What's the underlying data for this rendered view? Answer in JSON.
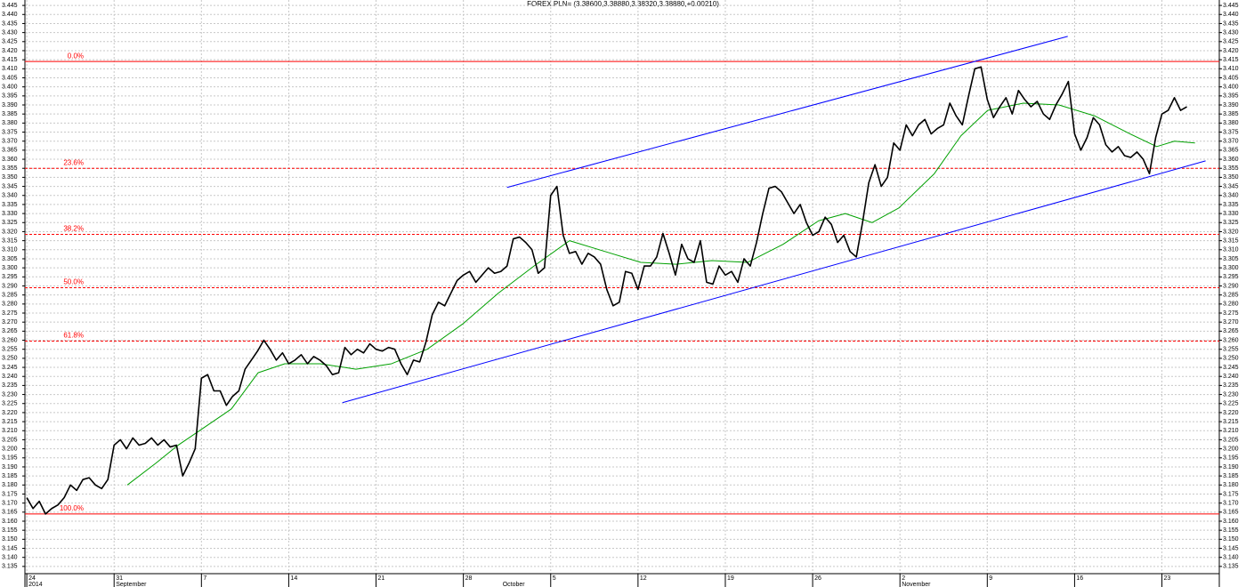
{
  "chart_data": {
    "type": "line",
    "title": "FOREX PLN= (3.38600,3.38880,3.38320,3.38880,+0.00210)",
    "x": [
      0,
      0.5,
      1,
      1.5,
      2,
      2.5,
      3,
      3.5,
      4,
      4.5,
      5,
      5.5,
      6,
      6.5,
      7,
      7.5,
      8,
      8.5,
      9,
      9.5,
      10,
      10.5,
      11,
      11.5,
      12,
      12.5,
      13,
      13.5,
      14,
      14.5,
      15,
      15.5,
      16,
      16.5,
      17,
      17.5,
      18,
      18.5,
      19,
      19.5,
      20,
      20.5,
      21,
      21.5,
      22,
      22.5,
      23,
      23.5,
      24,
      24.5,
      25,
      25.5,
      26,
      26.5,
      27,
      27.5,
      28,
      28.5,
      29,
      29.5,
      30,
      30.5,
      31,
      31.5,
      32,
      32.5,
      33,
      33.5,
      34,
      34.5,
      35,
      35.5,
      36,
      36.5,
      37,
      37.5,
      38,
      38.5,
      39,
      39.5,
      40,
      40.5,
      41,
      41.5,
      42,
      42.5,
      43,
      43.5,
      44,
      44.5,
      45,
      45.5,
      46,
      46.5,
      47,
      47.5,
      48,
      48.5,
      49,
      49.5,
      50,
      50.5,
      51,
      51.5,
      52,
      52.5,
      53,
      53.5,
      54,
      54.5,
      55,
      55.5,
      56,
      56.5,
      57,
      57.5,
      58,
      58.5,
      59,
      59.5,
      60,
      60.5,
      61,
      61.5,
      62,
      62.5,
      63,
      63.5,
      64,
      64.5,
      65,
      65.5,
      66,
      66.5,
      67,
      67.5,
      68,
      68.5,
      69,
      69.5,
      70,
      70.5,
      71,
      71.5,
      72,
      72.5,
      73,
      73.5,
      74,
      74.5,
      75,
      75.5,
      76,
      76.5,
      77,
      77.5,
      78,
      78.5,
      79,
      79.5,
      80,
      80.5,
      81,
      81.5,
      82,
      82.5,
      83,
      83.5,
      84,
      84.5,
      85,
      85.5,
      86,
      86.5,
      87,
      87.5,
      88,
      88.5,
      89,
      89.5,
      90,
      90.5,
      91,
      91.5,
      92,
      92.5,
      93
    ],
    "series": [
      {
        "color": "#000000",
        "values": [
          3.173,
          3.167,
          3.171,
          3.164,
          3.167,
          3.169,
          3.173,
          3.18,
          3.177,
          3.183,
          3.184,
          3.18,
          3.178,
          3.183,
          3.202,
          3.205,
          3.2,
          3.206,
          3.202,
          3.203,
          3.206,
          3.202,
          3.205,
          3.201,
          3.202,
          3.185,
          3.192,
          3.2,
          3.239,
          3.241,
          3.232,
          3.232,
          3.224,
          3.229,
          3.232,
          3.244,
          3.249,
          3.254,
          3.26,
          3.255,
          3.249,
          3.253,
          3.247,
          3.249,
          3.252,
          3.247,
          3.251,
          3.249,
          3.246,
          3.241,
          3.242,
          3.256,
          3.252,
          3.255,
          3.253,
          3.258,
          3.255,
          3.254,
          3.256,
          3.255,
          3.247,
          3.241,
          3.249,
          3.248,
          3.259,
          3.274,
          3.281,
          3.279,
          3.286,
          3.293,
          3.296,
          3.298,
          3.292,
          3.296,
          3.3,
          3.297,
          3.298,
          3.301,
          3.316,
          3.317,
          3.314,
          3.31,
          3.297,
          3.3,
          3.34,
          3.345,
          3.318,
          3.308,
          3.309,
          3.302,
          3.308,
          3.306,
          3.302,
          3.288,
          3.279,
          3.281,
          3.298,
          3.297,
          3.288,
          3.301,
          3.301,
          3.306,
          3.319,
          3.308,
          3.296,
          3.313,
          3.305,
          3.303,
          3.315,
          3.292,
          3.291,
          3.301,
          3.296,
          3.298,
          3.292,
          3.305,
          3.301,
          3.314,
          3.33,
          3.344,
          3.345,
          3.342,
          3.336,
          3.33,
          3.335,
          3.325,
          3.318,
          3.32,
          3.328,
          3.324,
          3.314,
          3.318,
          3.309,
          3.306,
          3.325,
          3.347,
          3.357,
          3.345,
          3.35,
          3.369,
          3.365,
          3.379,
          3.373,
          3.379,
          3.382,
          3.374,
          3.377,
          3.379,
          3.391,
          3.384,
          3.379,
          3.395,
          3.41,
          3.411,
          3.393,
          3.383,
          3.389,
          3.394,
          3.385,
          3.398,
          3.393,
          3.389,
          3.392,
          3.385,
          3.382,
          3.39,
          3.396,
          3.403,
          3.374,
          3.365,
          3.372,
          3.383,
          3.379,
          3.368,
          3.364,
          3.367,
          3.362,
          3.361,
          3.364,
          3.36,
          3.352,
          3.372,
          3.385,
          3.387,
          3.394,
          3.387,
          3.389
        ]
      },
      {
        "color": "#00a000",
        "x": [
          8.06,
          10.34,
          12.13,
          14.27,
          16.4,
          18.54,
          20.68,
          23.54,
          26.39,
          29.24,
          32.1,
          34.95,
          37.8,
          40.66,
          43.51,
          46.36,
          49.22,
          52.07,
          54.92,
          57.77,
          60.63,
          63.48,
          65.62,
          67.76,
          69.9,
          72.75,
          74.89,
          77.03,
          79.89,
          82.74,
          85.59,
          88.45,
          90.58,
          92,
          93.65
        ],
        "values": [
          3.18,
          3.192,
          3.202,
          3.212,
          3.222,
          3.242,
          3.247,
          3.247,
          3.244,
          3.247,
          3.255,
          3.269,
          3.286,
          3.301,
          3.315,
          3.309,
          3.303,
          3.302,
          3.304,
          3.303,
          3.313,
          3.326,
          3.33,
          3.325,
          3.333,
          3.352,
          3.373,
          3.387,
          3.391,
          3.39,
          3.384,
          3.374,
          3.367,
          3.37,
          3.369
        ]
      }
    ],
    "xlim": [
      -0.15,
      95.6
    ],
    "xticks": [
      {
        "value": 0,
        "label": "24"
      },
      {
        "value": 7,
        "label": "31"
      },
      {
        "value": 14,
        "label": "7"
      },
      {
        "value": 21,
        "label": "14"
      },
      {
        "value": 28,
        "label": "21"
      },
      {
        "value": 35,
        "label": "28"
      },
      {
        "value": 42,
        "label": "5"
      },
      {
        "value": 49,
        "label": "12"
      },
      {
        "value": 56,
        "label": "19"
      },
      {
        "value": 63,
        "label": "26"
      },
      {
        "value": 70,
        "label": "2"
      },
      {
        "value": 77,
        "label": "9"
      },
      {
        "value": 84,
        "label": "16"
      },
      {
        "value": 91,
        "label": "23"
      }
    ],
    "month_labels": [
      {
        "value": 0,
        "label": "2014"
      },
      {
        "value": 7,
        "label": "September"
      },
      {
        "value": 38,
        "label": "October"
      },
      {
        "value": 70,
        "label": "November"
      }
    ],
    "ylim": [
      3.131,
      3.448
    ],
    "yticks": [
      3.135,
      {
        "value": 3.14,
        "label": "3.140"
      },
      3.145,
      {
        "value": 3.15,
        "label": "3.150"
      },
      3.155,
      {
        "value": 3.16,
        "label": "3.160"
      },
      3.165,
      {
        "value": 3.17,
        "label": "3.170"
      },
      3.175,
      {
        "value": 3.18,
        "label": "3.180"
      },
      3.185,
      {
        "value": 3.19,
        "label": "3.190"
      },
      3.195,
      {
        "value": 3.2,
        "label": "3.200"
      },
      3.205,
      {
        "value": 3.21,
        "label": "3.210"
      },
      3.215,
      {
        "value": 3.22,
        "label": "3.220"
      },
      3.225,
      {
        "value": 3.23,
        "label": "3.230"
      },
      3.235,
      {
        "value": 3.24,
        "label": "3.240"
      },
      3.245,
      {
        "value": 3.25,
        "label": "3.250"
      },
      3.255,
      {
        "value": 3.26,
        "label": "3.260"
      },
      3.265,
      {
        "value": 3.27,
        "label": "3.270"
      },
      3.275,
      {
        "value": 3.28,
        "label": "3.280"
      },
      3.285,
      {
        "value": 3.29,
        "label": "3.290"
      },
      3.295,
      {
        "value": 3.3,
        "label": "3.300"
      },
      3.305,
      {
        "value": 3.31,
        "label": "3.310"
      },
      3.315,
      {
        "value": 3.32,
        "label": "3.320"
      },
      3.325,
      {
        "value": 3.33,
        "label": "3.330"
      },
      3.335,
      {
        "value": 3.34,
        "label": "3.340"
      },
      3.345,
      {
        "value": 3.35,
        "label": "3.350"
      },
      3.355,
      {
        "value": 3.36,
        "label": "3.360"
      },
      3.365,
      {
        "value": 3.37,
        "label": "3.370"
      },
      3.375,
      {
        "value": 3.38,
        "label": "3.380"
      },
      3.385,
      {
        "value": 3.39,
        "label": "3.390"
      },
      3.395,
      {
        "value": 3.4,
        "label": "3.400"
      },
      3.405,
      {
        "value": 3.41,
        "label": "3.410"
      },
      3.415,
      {
        "value": 3.42,
        "label": "3.420"
      },
      3.425,
      {
        "value": 3.43,
        "label": "3.430"
      },
      3.435,
      {
        "value": 3.44,
        "label": "3.440"
      },
      3.445
    ],
    "grid": true,
    "level_color": "#ff0000",
    "levels": [
      {
        "value": 3.414,
        "label": "0.0%",
        "style": "solid"
      },
      {
        "value": 3.355,
        "label": "23.6%",
        "style": "dashed"
      },
      {
        "value": 3.3185,
        "label": "38.2%",
        "style": "dashed"
      },
      {
        "value": 3.289,
        "label": "50.0%",
        "style": "dashed"
      },
      {
        "value": 3.2595,
        "label": "61.8%",
        "style": "dashed"
      },
      {
        "value": 3.164,
        "label": "100.0%",
        "style": "solid"
      }
    ],
    "trendline_color": "#0000ff",
    "trendlines": [
      {
        "x": [
          25.3,
          94.5
        ],
        "y": [
          3.2255,
          3.3591
        ]
      },
      {
        "x": [
          38.5,
          83.45
        ],
        "y": [
          3.3444,
          3.4279
        ]
      }
    ]
  }
}
